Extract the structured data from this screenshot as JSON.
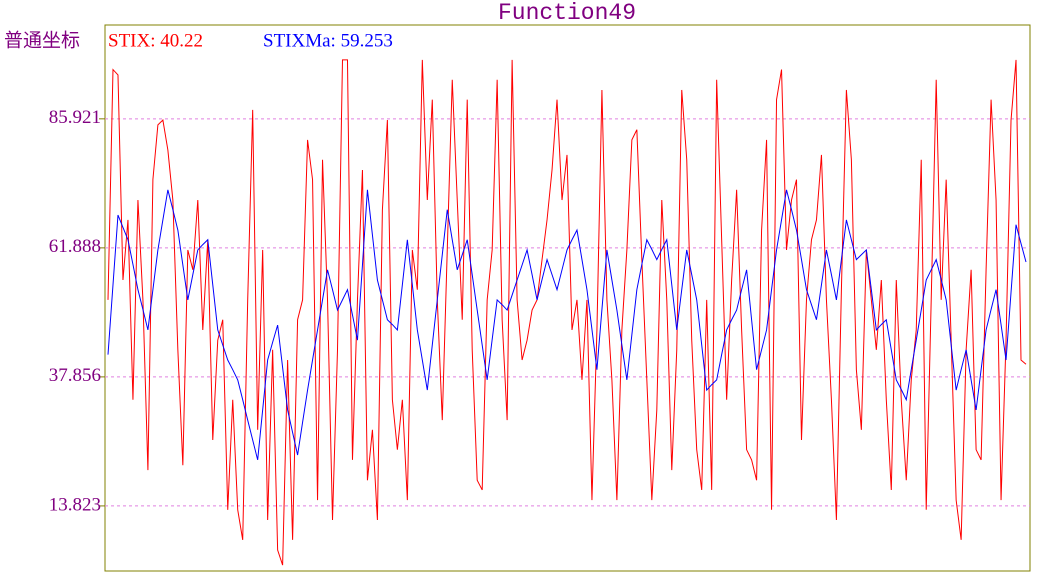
{
  "chart_data": {
    "type": "line",
    "title": "Function49",
    "y_label": "普通坐标",
    "ylim": [
      1.7,
      103.4
    ],
    "yticks": [
      13.823,
      37.856,
      61.888,
      85.921
    ],
    "grid": true,
    "series": [
      {
        "name": "STIX: 40.22",
        "color": "#ff0000",
        "values": [
          52.2,
          95.1,
          94.1,
          55.9,
          67.1,
          33.6,
          70.8,
          52.2,
          20.5,
          74.6,
          84.8,
          85.7,
          80.1,
          70.8,
          42.9,
          21.4,
          61.5,
          57.8,
          70.8,
          46.6,
          63.4,
          26.1,
          44.7,
          48.5,
          13.1,
          33.6,
          13.1,
          7.5,
          52.2,
          87.6,
          28.0,
          61.5,
          11.2,
          42.9,
          5.6,
          2.8,
          41.0,
          7.5,
          48.5,
          52.2,
          82.0,
          74.6,
          14.9,
          78.3,
          52.2,
          11.2,
          42.9,
          96.9,
          96.9,
          22.4,
          52.2,
          76.4,
          18.6,
          28.0,
          11.2,
          69.0,
          85.7,
          33.6,
          24.3,
          33.6,
          14.9,
          61.5,
          54.1,
          96.9,
          70.8,
          89.5,
          52.2,
          29.8,
          61.5,
          93.2,
          70.8,
          48.5,
          89.5,
          42.9,
          18.6,
          16.8,
          52.2,
          61.5,
          93.2,
          48.5,
          29.8,
          96.9,
          52.2,
          41.0,
          44.7,
          50.3,
          52.2,
          59.7,
          67.1,
          76.4,
          89.5,
          70.8,
          79.2,
          46.6,
          52.2,
          37.3,
          52.2,
          14.9,
          46.6,
          91.3,
          52.2,
          37.3,
          14.9,
          46.6,
          61.5,
          82.0,
          83.9,
          59.7,
          37.3,
          14.9,
          31.7,
          70.8,
          52.2,
          20.5,
          42.9,
          91.3,
          78.3,
          44.7,
          24.3,
          16.8,
          52.2,
          16.8,
          93.2,
          63.4,
          33.6,
          55.9,
          72.7,
          46.6,
          24.3,
          22.4,
          18.6,
          65.2,
          82.0,
          13.1,
          89.5,
          95.1,
          61.5,
          70.8,
          74.6,
          26.1,
          52.2,
          63.4,
          67.1,
          79.2,
          52.2,
          33.6,
          11.2,
          54.1,
          91.3,
          78.3,
          39.2,
          28.0,
          61.5,
          52.2,
          42.9,
          55.9,
          33.6,
          16.8,
          55.9,
          33.6,
          18.6,
          37.3,
          46.6,
          78.3,
          13.1,
          52.2,
          93.2,
          52.2,
          74.6,
          44.7,
          14.9,
          7.5,
          42.9,
          57.8,
          24.3,
          22.4,
          57.8,
          89.5,
          70.8,
          14.9,
          44.7,
          85.7,
          96.9,
          41.0,
          40.22
        ]
      },
      {
        "name": "STIXMa: 59.253",
        "color": "#0000ff",
        "values": [
          42.0,
          55.0,
          68.0,
          65.7,
          63.4,
          58.8,
          54.1,
          50.4,
          46.6,
          54.1,
          61.5,
          67.1,
          72.7,
          69.0,
          65.2,
          58.7,
          52.2,
          56.9,
          61.5,
          62.5,
          63.4,
          55.0,
          46.6,
          43.8,
          41.0,
          39.2,
          37.3,
          33.6,
          29.8,
          26.1,
          22.4,
          31.7,
          41.0,
          44.3,
          47.5,
          39.6,
          31.7,
          27.5,
          23.3,
          29.4,
          35.4,
          41.0,
          46.6,
          52.2,
          57.8,
          54.1,
          50.3,
          52.2,
          54.1,
          49.4,
          44.7,
          58.7,
          72.7,
          64.3,
          55.9,
          52.2,
          48.5,
          47.6,
          46.6,
          55.0,
          63.4,
          55.0,
          46.6,
          41.0,
          35.4,
          43.8,
          52.2,
          60.6,
          69.0,
          63.4,
          57.8,
          60.6,
          63.4,
          56.9,
          50.3,
          43.8,
          37.3,
          44.8,
          52.2,
          51.3,
          50.3,
          53.1,
          55.9,
          58.7,
          61.5,
          56.9,
          52.2,
          56.0,
          59.7,
          56.9,
          54.1,
          57.8,
          61.5,
          63.4,
          65.2,
          59.7,
          54.1,
          46.7,
          39.2,
          50.4,
          61.5,
          55.9,
          50.3,
          43.8,
          37.3,
          45.7,
          54.1,
          58.8,
          63.4,
          61.6,
          59.7,
          61.6,
          63.4,
          55.0,
          46.6,
          54.1,
          61.5,
          56.9,
          52.2,
          43.8,
          35.4,
          36.4,
          37.3,
          42.0,
          46.6,
          48.5,
          50.3,
          54.1,
          57.8,
          48.5,
          39.2,
          42.9,
          46.6,
          54.1,
          61.5,
          67.1,
          72.7,
          69.0,
          65.2,
          59.7,
          54.1,
          51.3,
          48.5,
          55.0,
          61.5,
          56.9,
          52.2,
          59.7,
          67.1,
          63.4,
          59.7,
          60.6,
          61.5,
          54.1,
          46.6,
          47.6,
          48.5,
          42.9,
          37.3,
          35.5,
          33.6,
          39.2,
          44.7,
          50.3,
          55.9,
          57.8,
          59.7,
          56.0,
          52.2,
          43.8,
          35.4,
          39.2,
          42.9,
          37.3,
          31.7,
          39.2,
          46.6,
          50.4,
          54.1,
          47.6,
          41.0,
          53.6,
          66.2,
          62.7,
          59.253
        ]
      }
    ]
  }
}
